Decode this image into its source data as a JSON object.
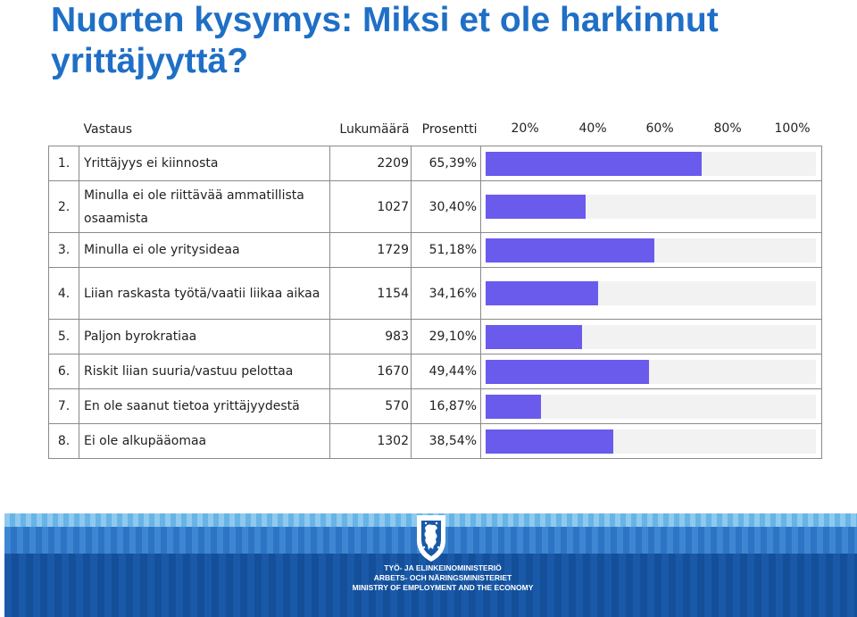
{
  "title": "Nuorten kysymys: Miksi et ole harkinnut yrittäjyyttä?",
  "table": {
    "header": {
      "answer": "Vastaus",
      "count": "Lukumäärä",
      "percent": "Prosentti"
    }
  },
  "chart_data": {
    "type": "bar",
    "orientation": "horizontal",
    "axis_ticks": [
      "20%",
      "40%",
      "60%",
      "80%",
      "100%"
    ],
    "xlim": [
      0,
      100
    ],
    "rows": [
      {
        "num": "1.",
        "label": "Yrittäjyys ei kiinnosta",
        "count": "2209",
        "percent": "65,39%",
        "value": 65.39
      },
      {
        "num": "2.",
        "label": "Minulla ei ole riittävää ammatillista osaamista",
        "count": "1027",
        "percent": "30,40%",
        "value": 30.4
      },
      {
        "num": "3.",
        "label": "Minulla ei ole yritysideaa",
        "count": "1729",
        "percent": "51,18%",
        "value": 51.18
      },
      {
        "num": "4.",
        "label": "Liian raskasta työtä/vaatii liikaa aikaa",
        "count": "1154",
        "percent": "34,16%",
        "value": 34.16
      },
      {
        "num": "5.",
        "label": "Paljon byrokratiaa",
        "count": "983",
        "percent": "29,10%",
        "value": 29.1
      },
      {
        "num": "6.",
        "label": "Riskit liian suuria/vastuu pelottaa",
        "count": "1670",
        "percent": "49,44%",
        "value": 49.44
      },
      {
        "num": "7.",
        "label": "En ole saanut tietoa yrittäjyydestä",
        "count": "570",
        "percent": "16,87%",
        "value": 16.87
      },
      {
        "num": "8.",
        "label": "Ei ole alkupääomaa",
        "count": "1302",
        "percent": "38,54%",
        "value": 38.54
      }
    ]
  },
  "colors": {
    "title": "#1f6fc6",
    "bar": "#6a5bed",
    "track": "#f2f2f2",
    "banner": "#1959a8"
  },
  "footer": {
    "crest_icon": "finnish-lion-crest-icon",
    "ministry_fi": "TYÖ- JA ELINKEINOMINISTERIÖ",
    "ministry_sv": "ARBETS- OCH NÄRINGSMINISTERIET",
    "ministry_en": "MINISTRY OF EMPLOYMENT AND THE ECONOMY"
  }
}
